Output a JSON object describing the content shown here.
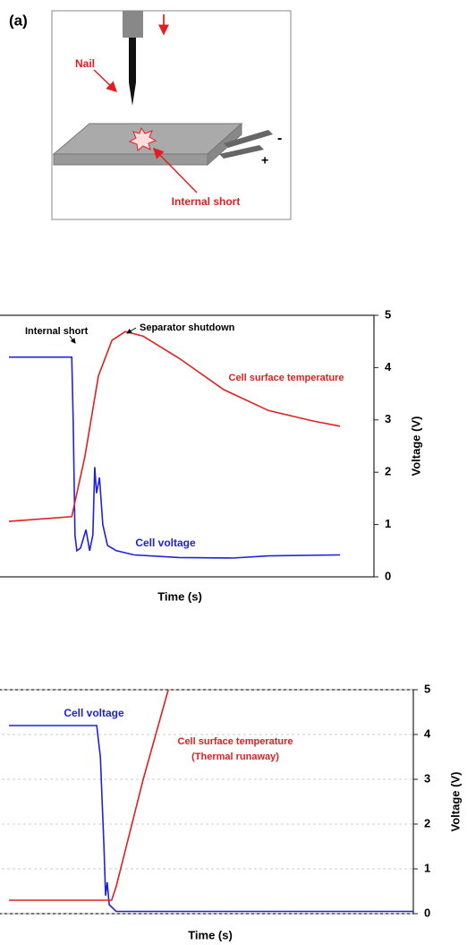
{
  "figure": {
    "panel_label": "(a)",
    "diagram": {
      "nail": "Nail",
      "internal_short": "Internal short",
      "minus": "-",
      "plus": "+"
    }
  },
  "chart_data": [
    {
      "type": "line",
      "xlabel": "Time (s)",
      "y2label": "Voltage (V)",
      "xlim": [
        0,
        100
      ],
      "ylim": [
        0,
        5
      ],
      "y2lim": [
        0,
        5
      ],
      "y2ticks": [
        0,
        1,
        2,
        3,
        4,
        5
      ],
      "grid": false,
      "annotations": [
        {
          "text": "Internal short",
          "color": "#000000"
        },
        {
          "text": "Separator shutdown",
          "color": "#000000"
        },
        {
          "text": "Cell surface temperature",
          "color": "#e02020"
        },
        {
          "text": "Cell voltage",
          "color": "#2020e0"
        }
      ],
      "series": [
        {
          "name": "Cell voltage",
          "color": "#2020e0",
          "axis": "y2",
          "x": [
            0,
            17.2,
            17.6,
            18.1,
            18.6,
            19.6,
            21.1,
            22.1,
            23.0,
            23.5,
            24.0,
            24.8,
            25.7,
            27.0,
            29.4,
            34.3,
            46.6,
            61.3,
            71.1,
            90.7
          ],
          "values": [
            4.2,
            4.2,
            3.0,
            0.8,
            0.5,
            0.55,
            0.9,
            0.5,
            0.8,
            2.1,
            1.6,
            1.9,
            1.0,
            0.6,
            0.5,
            0.42,
            0.37,
            0.36,
            0.4,
            0.42
          ]
        },
        {
          "name": "Cell surface temperature",
          "color": "#e02020",
          "axis": "y",
          "x": [
            0,
            17.2,
            20.8,
            24.5,
            28.2,
            31.9,
            36.8,
            46.6,
            58.8,
            71.1,
            83.3,
            90.7
          ],
          "values": [
            1.06,
            1.15,
            2.3,
            3.84,
            4.52,
            4.69,
            4.6,
            4.18,
            3.58,
            3.18,
            2.98,
            2.88
          ]
        }
      ]
    },
    {
      "type": "line",
      "xlabel": "Time (s)",
      "y2label": "Voltage (V)",
      "xlim": [
        0,
        100
      ],
      "ylim": [
        0,
        5
      ],
      "y2lim": [
        0,
        5
      ],
      "y2ticks": [
        0,
        1,
        2,
        3,
        4,
        5
      ],
      "grid": true,
      "annotations": [
        {
          "text": "Cell voltage",
          "color": "#2020e0"
        },
        {
          "text": "Cell surface temperature",
          "color": "#e02020"
        },
        {
          "text": "(Thermal runaway)",
          "color": "#e02020"
        }
      ],
      "series": [
        {
          "name": "Cell voltage",
          "color": "#2020e0",
          "axis": "y2",
          "x": [
            0,
            21.7,
            22.6,
            23.5,
            23.9,
            24.3,
            24.8,
            26.5,
            100
          ],
          "values": [
            4.2,
            4.2,
            3.5,
            1.5,
            0.4,
            0.7,
            0.2,
            0.05,
            0.05
          ]
        },
        {
          "name": "Cell surface temperature",
          "color": "#e02020",
          "axis": "y",
          "x": [
            0,
            25.4,
            26.5,
            33.2,
            39.4
          ],
          "values": [
            0.3,
            0.3,
            0.6,
            3.0,
            5.0
          ]
        }
      ]
    }
  ]
}
